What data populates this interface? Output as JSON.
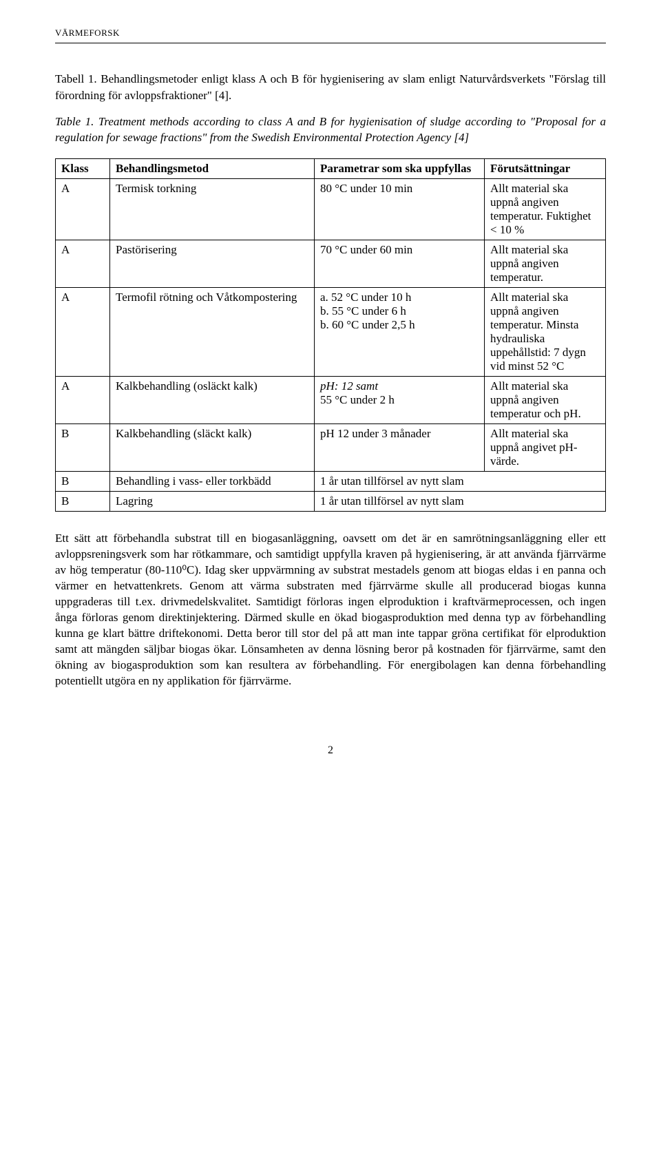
{
  "header": {
    "brand": "VÄRMEFORSK"
  },
  "caption_sv": "Tabell 1. Behandlingsmetoder enligt klass A och B för hygienisering av slam enligt Naturvårdsverkets \"Förslag till förordning för avloppsfraktioner\" [4].",
  "caption_en": "Table 1. Treatment methods according to class A and B for hygienisation of sludge according to \"Proposal for a regulation for sewage fractions\" from the Swedish Environmental Protection Agency [4]",
  "table": {
    "columns": [
      "Klass",
      "Behandlingsmetod",
      "Parametrar som ska uppfyllas",
      "Förutsättningar"
    ],
    "rows": [
      {
        "klass": "A",
        "metod": "Termisk torkning",
        "param": "80 °C under 10 min",
        "for": "Allt material ska uppnå angiven temperatur. Fuktighet < 10 %",
        "param_italic": false
      },
      {
        "klass": "A",
        "metod": "Pastörisering",
        "param": "70 °C under 60 min",
        "for": "Allt material ska uppnå angiven temperatur.",
        "param_italic": false
      },
      {
        "klass": "A",
        "metod": "Termofil rötning och Våtkompostering",
        "param": "a. 52 °C under 10 h\nb. 55 °C under 6 h\nb. 60 °C under 2,5 h",
        "for": "Allt material ska uppnå angiven temperatur. Minsta hydrauliska uppehållstid: 7 dygn vid minst 52 °C",
        "param_italic": false
      },
      {
        "klass": "A",
        "metod": "Kalkbehandling (osläckt kalk)",
        "param": "pH: 12 samt\n55 °C under 2 h",
        "for": "Allt material ska uppnå angiven temperatur och pH.",
        "param_italic": true
      },
      {
        "klass": "B",
        "metod": "Kalkbehandling (släckt kalk)",
        "param": "pH 12 under 3 månader",
        "for": "Allt material ska uppnå angivet pH-värde.",
        "param_italic": false
      },
      {
        "klass": "B",
        "metod": "Behandling i vass- eller torkbädd",
        "param": "1 år utan tillförsel av nytt slam",
        "for": "",
        "param_italic": false,
        "colspan": true
      },
      {
        "klass": "B",
        "metod": "Lagring",
        "param": "1 år utan tillförsel av nytt slam",
        "for": "",
        "param_italic": false,
        "colspan": true
      }
    ]
  },
  "body_paragraph": "Ett sätt att förbehandla substrat till en biogasanläggning, oavsett om det är en samrötningsanläggning eller ett avloppsreningsverk som har rötkammare, och samtidigt uppfylla kraven på hygienisering, är att använda fjärrvärme av hög temperatur (80-110⁰C). Idag sker uppvärmning av substrat mestadels genom att biogas eldas i en panna och värmer en hetvattenkrets. Genom att värma substraten med fjärrvärme skulle all producerad biogas kunna uppgraderas till t.ex. drivmedelskvalitet. Samtidigt förloras ingen elproduktion i kraftvärmeprocessen, och ingen ånga förloras genom direktinjektering. Därmed skulle en ökad biogasproduktion med denna typ av förbehandling kunna ge klart bättre driftekonomi. Detta beror till stor del på att man inte tappar gröna certifikat för elproduktion samt att mängden säljbar biogas ökar. Lönsamheten av denna lösning beror på kostnaden för fjärrvärme, samt den ökning av biogasproduktion som kan resultera av förbehandling. För energibolagen kan denna förbehandling potentiellt utgöra en ny applikation för fjärrvärme.",
  "page_number": "2"
}
